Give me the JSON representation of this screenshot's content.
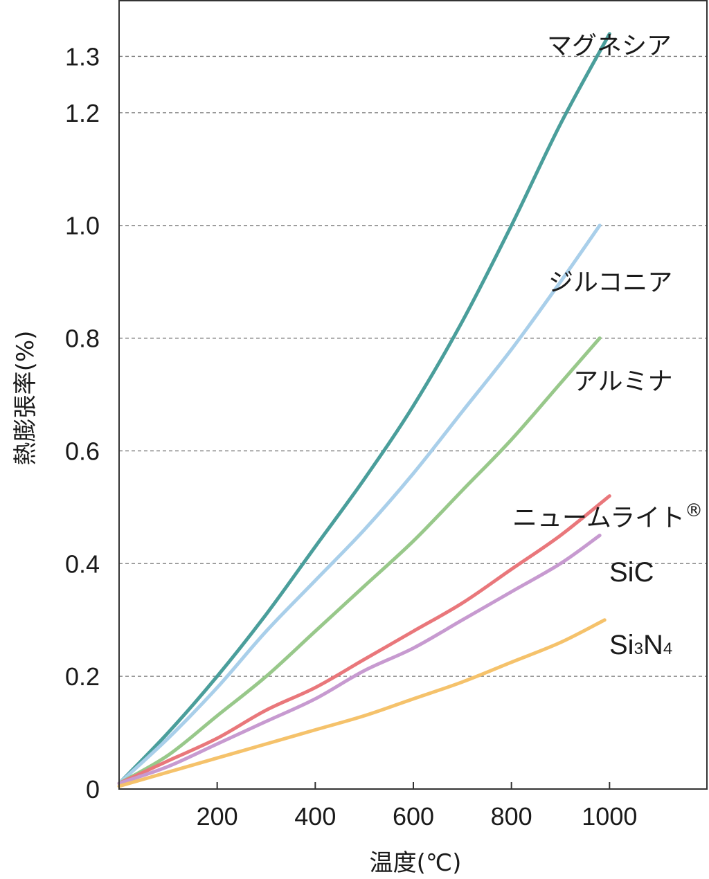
{
  "chart_data": {
    "type": "line",
    "title": "",
    "xlabel": "温度(℃)",
    "ylabel": "熱膨張率(%)",
    "xlim": [
      0,
      1200
    ],
    "ylim": [
      0,
      1.4
    ],
    "x_ticks": [
      200,
      400,
      600,
      800,
      1000
    ],
    "x_tick_labels": [
      "200",
      "400",
      "600",
      "800",
      "1000"
    ],
    "y_ticks": [
      0,
      0.2,
      0.4,
      0.6,
      0.8,
      1.0,
      1.2,
      1.3
    ],
    "y_tick_labels": [
      "0",
      "0.2",
      "0.4",
      "0.6",
      "0.8",
      "1.0",
      "1.2",
      "1.3"
    ],
    "grid": "horizontal-dashed",
    "legend": "inline-at-line-ends",
    "series": [
      {
        "name": "マグネシア",
        "color": "#4a9e9b",
        "x": [
          0,
          100,
          200,
          300,
          400,
          500,
          600,
          700,
          800,
          900,
          1000
        ],
        "y": [
          0.01,
          0.1,
          0.2,
          0.31,
          0.43,
          0.55,
          0.68,
          0.83,
          1.0,
          1.18,
          1.34
        ]
      },
      {
        "name": "ジルコニア",
        "color": "#a9cfea",
        "x": [
          0,
          100,
          200,
          300,
          400,
          500,
          600,
          700,
          800,
          900,
          980
        ],
        "y": [
          0.01,
          0.09,
          0.18,
          0.28,
          0.37,
          0.46,
          0.56,
          0.67,
          0.78,
          0.9,
          1.0
        ]
      },
      {
        "name": "アルミナ",
        "color": "#98c88a",
        "x": [
          0,
          100,
          200,
          300,
          400,
          500,
          600,
          700,
          800,
          900,
          980
        ],
        "y": [
          0.01,
          0.06,
          0.13,
          0.2,
          0.28,
          0.36,
          0.44,
          0.53,
          0.62,
          0.72,
          0.8
        ]
      },
      {
        "name": "ニュームライト",
        "mark": "®",
        "color": "#e9777b",
        "x": [
          0,
          100,
          200,
          300,
          400,
          500,
          600,
          700,
          800,
          900,
          1000
        ],
        "y": [
          0.01,
          0.05,
          0.09,
          0.14,
          0.18,
          0.23,
          0.28,
          0.33,
          0.39,
          0.45,
          0.52
        ]
      },
      {
        "name": "SiC",
        "color": "#c79ad0",
        "x": [
          0,
          100,
          200,
          300,
          400,
          500,
          600,
          700,
          800,
          900,
          980
        ],
        "y": [
          0.01,
          0.04,
          0.08,
          0.12,
          0.16,
          0.21,
          0.25,
          0.3,
          0.35,
          0.4,
          0.45
        ]
      },
      {
        "name": "Si3N4",
        "label_base": "Si",
        "label_sub1": "3",
        "label_mid": "N",
        "label_sub2": "4",
        "color": "#f5c26b",
        "x": [
          0,
          100,
          200,
          300,
          400,
          500,
          600,
          700,
          800,
          900,
          990
        ],
        "y": [
          0.005,
          0.03,
          0.055,
          0.08,
          0.105,
          0.13,
          0.16,
          0.19,
          0.225,
          0.26,
          0.3
        ]
      }
    ]
  }
}
